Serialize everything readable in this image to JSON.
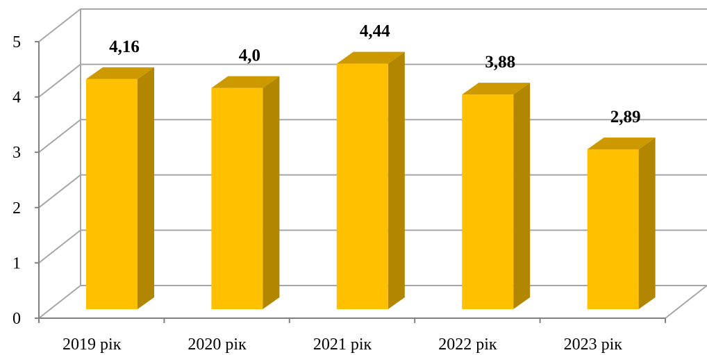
{
  "chart_data": {
    "type": "bar",
    "style": "3d-column",
    "categories": [
      "2019 рік",
      "2020 рік",
      "2021 рік",
      "2022 рік",
      "2023 рік"
    ],
    "values": [
      4.16,
      4.0,
      4.44,
      3.88,
      2.89
    ],
    "value_labels": [
      "4,16",
      "4,0",
      "4,44",
      "3,88",
      "2,89"
    ],
    "yticks": [
      "0",
      "1",
      "2",
      "3",
      "4",
      "5"
    ],
    "ylim": [
      0,
      5
    ],
    "grid": true,
    "legend": "none",
    "title": "",
    "xlabel": "",
    "ylabel": "",
    "colors": {
      "bar_front": "#FFC000",
      "bar_side": "#B38600",
      "bar_top": "#CC9A00",
      "grid": "#A6A6A6",
      "axis": "#808080"
    }
  }
}
